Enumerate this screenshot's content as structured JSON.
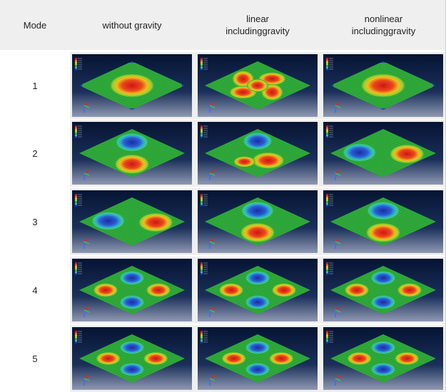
{
  "table": {
    "columns": [
      "Mode",
      "without gravity",
      "linear\nincludinggravity",
      "nonlinear\nincludinggravity"
    ],
    "rows": [
      {
        "mode": "1",
        "cells": [
          "center-peak",
          "four-lobe",
          "center-peak"
        ]
      },
      {
        "mode": "2",
        "cells": [
          "two-lobe-vertical",
          "two-lobe-diagonal",
          "two-lobe-horizontal"
        ]
      },
      {
        "mode": "3",
        "cells": [
          "two-lobe-horizontal",
          "two-lobe-vertical",
          "two-lobe-vertical"
        ]
      },
      {
        "mode": "4",
        "cells": [
          "four-lobe-checker",
          "four-lobe-checker",
          "four-lobe-checker"
        ]
      },
      {
        "mode": "5",
        "cells": [
          "four-lobe-diagonal",
          "four-lobe-diagonal",
          "four-lobe-diagonal"
        ]
      }
    ]
  },
  "colors": {
    "header_bg": "#efefef",
    "panel_bg": "#0a1b3d",
    "plate_green": "#2faa3a",
    "peak_red": "#e0281e",
    "trough_blue": "#1f3fb8"
  }
}
